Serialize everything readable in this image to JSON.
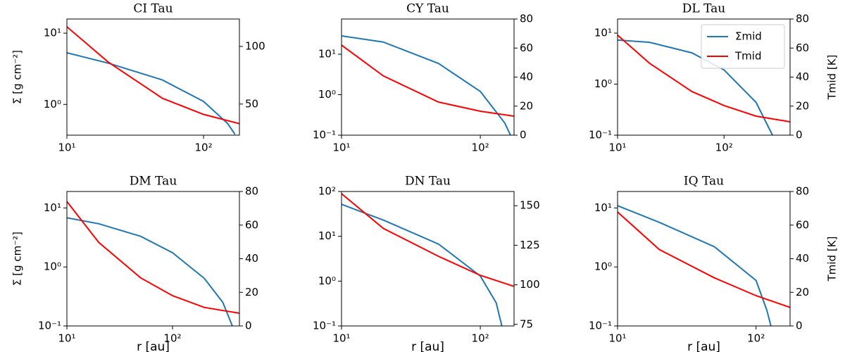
{
  "chart_data": [
    {
      "type": "line",
      "title": "CI Tau",
      "xscale": "log",
      "yscale": "log",
      "xlim": [
        10,
        183
      ],
      "xticks": [
        {
          "value": 10,
          "label": "10¹"
        },
        {
          "value": 100,
          "label": "10²"
        }
      ],
      "ylim": [
        0.37,
        15.8
      ],
      "yticks": [
        {
          "value": 1,
          "label": "10⁰"
        },
        {
          "value": 10,
          "label": "10¹"
        }
      ],
      "y2lim": [
        23,
        123.8
      ],
      "y2ticks": [
        50,
        100
      ],
      "ylabel": "Σ [g cm⁻²]",
      "series": [
        {
          "color": "#1f77b4",
          "x": [
            10,
            20,
            50,
            100,
            150,
            170
          ],
          "values": [
            5.3,
            3.8,
            2.2,
            1.1,
            0.54,
            0.38
          ]
        },
        {
          "color": "#ff0000",
          "axis": "y2",
          "x": [
            10,
            20,
            50,
            100,
            183
          ],
          "values": [
            117,
            86.6,
            55,
            41,
            33
          ]
        }
      ]
    },
    {
      "type": "line",
      "title": "CY Tau",
      "xscale": "log",
      "yscale": "log",
      "xlim": [
        10,
        175
      ],
      "xticks": [
        {
          "value": 10,
          "label": "10¹"
        },
        {
          "value": 100,
          "label": "10²"
        }
      ],
      "ylim": [
        0.1,
        74
      ],
      "yticks": [
        {
          "value": 0.1,
          "label": "10⁻¹"
        },
        {
          "value": 1,
          "label": "10⁰"
        },
        {
          "value": 10,
          "label": "10¹"
        }
      ],
      "y2lim": [
        0,
        80
      ],
      "y2ticks": [
        0,
        20,
        40,
        60,
        80
      ],
      "series": [
        {
          "color": "#1f77b4",
          "x": [
            10,
            20,
            50,
            100,
            150,
            165
          ],
          "values": [
            28.3,
            20,
            5.9,
            1.2,
            0.2,
            0.1
          ]
        },
        {
          "color": "#ff0000",
          "axis": "y2",
          "x": [
            10,
            20,
            50,
            100,
            175
          ],
          "values": [
            62,
            40.8,
            22.8,
            16.5,
            13.1
          ]
        }
      ]
    },
    {
      "type": "line",
      "title": "DL Tau",
      "xscale": "log",
      "yscale": "log",
      "xlim": [
        10,
        417
      ],
      "xticks": [
        {
          "value": 10,
          "label": "10¹"
        },
        {
          "value": 100,
          "label": "10²"
        }
      ],
      "ylim": [
        0.1,
        18.9
      ],
      "yticks": [
        {
          "value": 0.1,
          "label": "10⁻¹"
        },
        {
          "value": 1,
          "label": "10⁰"
        },
        {
          "value": 10,
          "label": "10¹"
        }
      ],
      "y2lim": [
        0,
        80
      ],
      "y2ticks": [
        0,
        20,
        40,
        60,
        80
      ],
      "y2label": "Tmid [K]",
      "legend": "upper right",
      "series": [
        {
          "name": "Σmid",
          "color": "#1f77b4",
          "x": [
            10,
            20,
            50,
            100,
            200,
            285
          ],
          "values": [
            7.3,
            6.6,
            4.1,
            1.9,
            0.44,
            0.1
          ]
        },
        {
          "name": "Tmid",
          "color": "#ff0000",
          "axis": "y2",
          "x": [
            10,
            20,
            50,
            100,
            200,
            417
          ],
          "values": [
            68.9,
            49.5,
            30,
            20.4,
            13.1,
            9.2
          ]
        }
      ]
    },
    {
      "type": "line",
      "title": "DM Tau",
      "xscale": "log",
      "yscale": "log",
      "xlim": [
        10,
        430
      ],
      "xticks": [
        {
          "value": 10,
          "label": "10¹"
        },
        {
          "value": 100,
          "label": "10²"
        }
      ],
      "ylim": [
        0.1,
        19
      ],
      "yticks": [
        {
          "value": 0.1,
          "label": "10⁻¹"
        },
        {
          "value": 1,
          "label": "10⁰"
        },
        {
          "value": 10,
          "label": "10¹"
        }
      ],
      "y2lim": [
        0,
        80
      ],
      "y2ticks": [
        0,
        20,
        40,
        60,
        80
      ],
      "ylabel": "Σ [g cm⁻²]",
      "xlabel": "r [au]",
      "series": [
        {
          "color": "#1f77b4",
          "x": [
            10,
            20,
            50,
            100,
            200,
            300,
            368
          ],
          "values": [
            6.8,
            5.4,
            3.3,
            1.74,
            0.64,
            0.25,
            0.1
          ]
        },
        {
          "color": "#ff0000",
          "axis": "y2",
          "x": [
            10,
            20,
            50,
            100,
            200,
            430
          ],
          "values": [
            74,
            49.7,
            28.6,
            18,
            11,
            7.6
          ]
        }
      ]
    },
    {
      "type": "line",
      "title": "DN Tau",
      "xscale": "log",
      "yscale": "log",
      "xlim": [
        10,
        175
      ],
      "xticks": [
        {
          "value": 10,
          "label": "10¹"
        },
        {
          "value": 100,
          "label": "10²"
        }
      ],
      "ylim": [
        0.1,
        100
      ],
      "yticks": [
        {
          "value": 0.1,
          "label": "10⁻¹"
        },
        {
          "value": 1,
          "label": "10⁰"
        },
        {
          "value": 10,
          "label": "10¹"
        },
        {
          "value": 100,
          "label": "10²"
        }
      ],
      "y2lim": [
        74,
        159
      ],
      "y2ticks": [
        75,
        100,
        125,
        150
      ],
      "xlabel": "r [au]",
      "series": [
        {
          "color": "#1f77b4",
          "x": [
            10,
            20,
            50,
            100,
            130,
            143
          ],
          "values": [
            51.8,
            23,
            6.7,
            1.3,
            0.33,
            0.1
          ]
        },
        {
          "color": "#ff0000",
          "axis": "y2",
          "x": [
            10,
            20,
            50,
            100,
            175
          ],
          "values": [
            157.6,
            135.7,
            118,
            106,
            99
          ]
        }
      ]
    },
    {
      "type": "line",
      "title": "IQ Tau",
      "xscale": "log",
      "yscale": "log",
      "xlim": [
        10,
        176
      ],
      "xticks": [
        {
          "value": 10,
          "label": "10¹"
        },
        {
          "value": 100,
          "label": "10²"
        }
      ],
      "ylim": [
        0.1,
        19
      ],
      "yticks": [
        {
          "value": 0.1,
          "label": "10⁻¹"
        },
        {
          "value": 1,
          "label": "10⁰"
        },
        {
          "value": 10,
          "label": "10¹"
        }
      ],
      "y2lim": [
        0,
        80
      ],
      "y2ticks": [
        0,
        20,
        40,
        60,
        80
      ],
      "xlabel": "r [au]",
      "y2label": "Tmid [K]",
      "series": [
        {
          "color": "#1f77b4",
          "x": [
            10,
            20,
            50,
            100,
            120,
            128
          ],
          "values": [
            10.9,
            5.7,
            2.2,
            0.59,
            0.18,
            0.1
          ]
        },
        {
          "color": "#ff0000",
          "axis": "y2",
          "x": [
            10,
            20,
            50,
            100,
            176
          ],
          "values": [
            67.8,
            45.5,
            28.6,
            18,
            11
          ]
        }
      ]
    }
  ]
}
